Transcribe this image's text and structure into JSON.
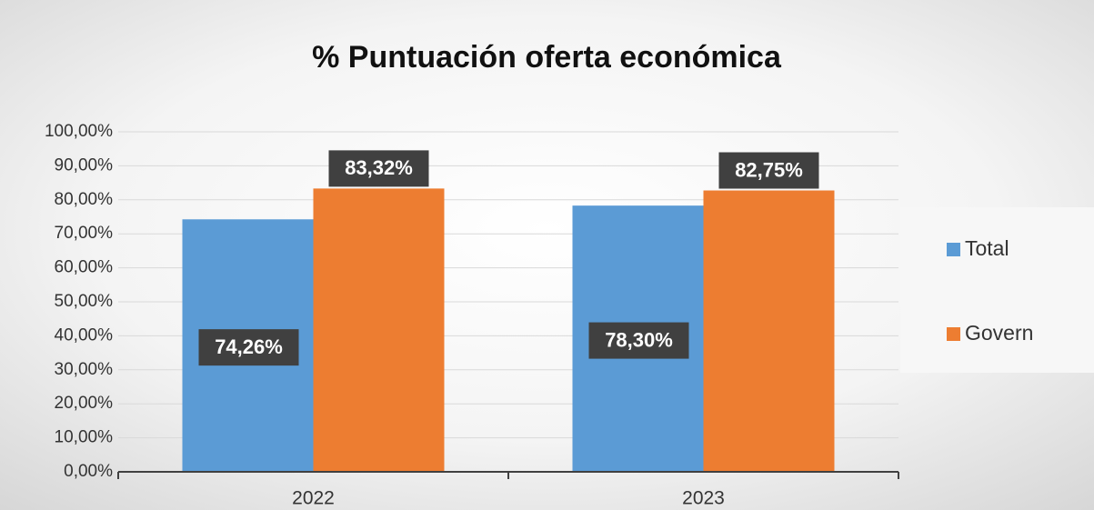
{
  "chart_data": {
    "type": "bar",
    "title": "% Puntuación oferta económica",
    "categories": [
      "2022",
      "2023"
    ],
    "series": [
      {
        "name": "Total",
        "color": "#5b9bd5",
        "values": [
          74.26,
          78.3
        ],
        "value_labels": [
          "74,26%",
          "78,30%"
        ]
      },
      {
        "name": "Govern",
        "color": "#ed7d31",
        "values": [
          83.32,
          82.75
        ],
        "value_labels": [
          "83,32%",
          "82,75%"
        ]
      }
    ],
    "ylim": [
      0,
      100
    ],
    "yticks": [
      {
        "value": 0,
        "label": "0,00%"
      },
      {
        "value": 10,
        "label": "10,00%"
      },
      {
        "value": 20,
        "label": "20,00%"
      },
      {
        "value": 30,
        "label": "30,00%"
      },
      {
        "value": 40,
        "label": "40,00%"
      },
      {
        "value": 50,
        "label": "50,00%"
      },
      {
        "value": 60,
        "label": "60,00%"
      },
      {
        "value": 70,
        "label": "70,00%"
      },
      {
        "value": 80,
        "label": "80,00%"
      },
      {
        "value": 90,
        "label": "90,00%"
      },
      {
        "value": 100,
        "label": "100,00%"
      }
    ],
    "grid": true,
    "legend": "right"
  }
}
